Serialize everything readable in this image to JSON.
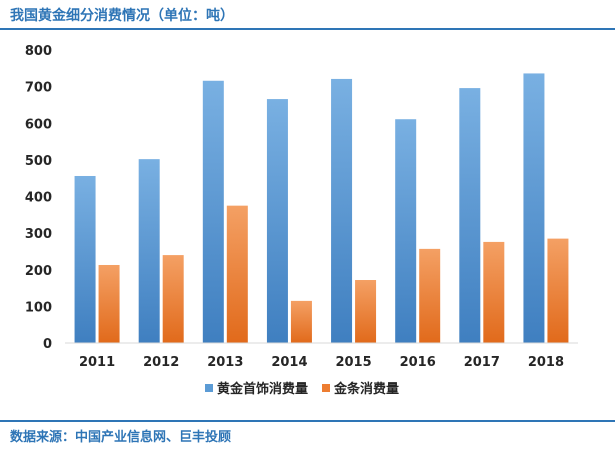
{
  "title": "我国黄金细分消费情况（单位：吨）",
  "source": "数据来源：中国产业信息网、巨丰投顾",
  "colors": {
    "jewelry": "#5B9BD5",
    "bar": "#ED7D31",
    "accent": "#2E75B6",
    "axis_text": "#262626",
    "grid": "#D9D9D9"
  },
  "chart_data": {
    "type": "bar",
    "categories": [
      "2011",
      "2012",
      "2013",
      "2014",
      "2015",
      "2016",
      "2017",
      "2018"
    ],
    "series": [
      {
        "name": "黄金首饰消费量",
        "values": [
          456,
          502,
          716,
          666,
          721,
          611,
          696,
          736
        ]
      },
      {
        "name": "金条消费量",
        "values": [
          213,
          240,
          375,
          115,
          172,
          257,
          276,
          285
        ]
      }
    ],
    "ylim": [
      0,
      800
    ],
    "yticks": [
      "0",
      "100",
      "200",
      "300",
      "400",
      "500",
      "600",
      "700",
      "800"
    ],
    "grid": false,
    "legend": "bottom"
  }
}
